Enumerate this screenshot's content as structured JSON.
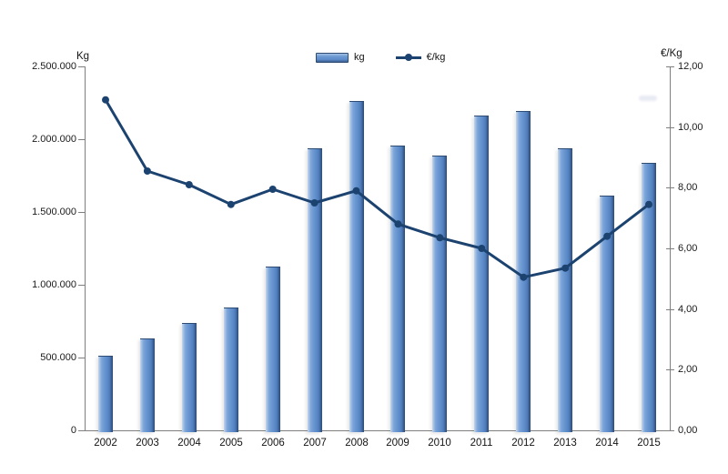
{
  "page": {
    "background_color": "#ffffff"
  },
  "chart_data": {
    "type": "bar",
    "combo": "bar+line",
    "grid": false,
    "categories": [
      "2002",
      "2003",
      "2004",
      "2005",
      "2006",
      "2007",
      "2008",
      "2009",
      "2010",
      "2011",
      "2012",
      "2013",
      "2014",
      "2015"
    ],
    "series": [
      {
        "name": "kg",
        "type": "bar",
        "axis": "left",
        "values": [
          515000,
          630000,
          740000,
          845000,
          1125000,
          1940000,
          2265000,
          1955000,
          1885000,
          2160000,
          2195000,
          1940000,
          1610000,
          1835000
        ],
        "color": "#5f8dca",
        "highlight_color": "#a4c0e4",
        "edge_color": "#2e4b74"
      },
      {
        "name": "€/kg",
        "type": "line",
        "axis": "right",
        "values": [
          10.9,
          8.55,
          8.1,
          7.45,
          7.95,
          7.5,
          7.9,
          6.8,
          6.35,
          6.0,
          5.05,
          5.35,
          6.4,
          7.45
        ],
        "color": "#1c4370"
      }
    ],
    "left_axis": {
      "title": "Kg",
      "min": 0,
      "max": 2500000,
      "step": 500000,
      "tick_labels": [
        "2.500.000",
        "2.000.000",
        "1.500.000",
        "1.000.000",
        "500.000",
        "0"
      ]
    },
    "right_axis": {
      "title": "€/Kg",
      "min": 0,
      "max": 12,
      "step": 2,
      "tick_labels": [
        "12,00",
        "10,00",
        "8,00",
        "6,00",
        "4,00",
        "2,00",
        "0,00"
      ]
    },
    "legend": {
      "position": "top-center",
      "entries": [
        "kg",
        "€/kg"
      ]
    },
    "axis_color": "#7f7f7f",
    "text_color": "#1a1a1a"
  }
}
